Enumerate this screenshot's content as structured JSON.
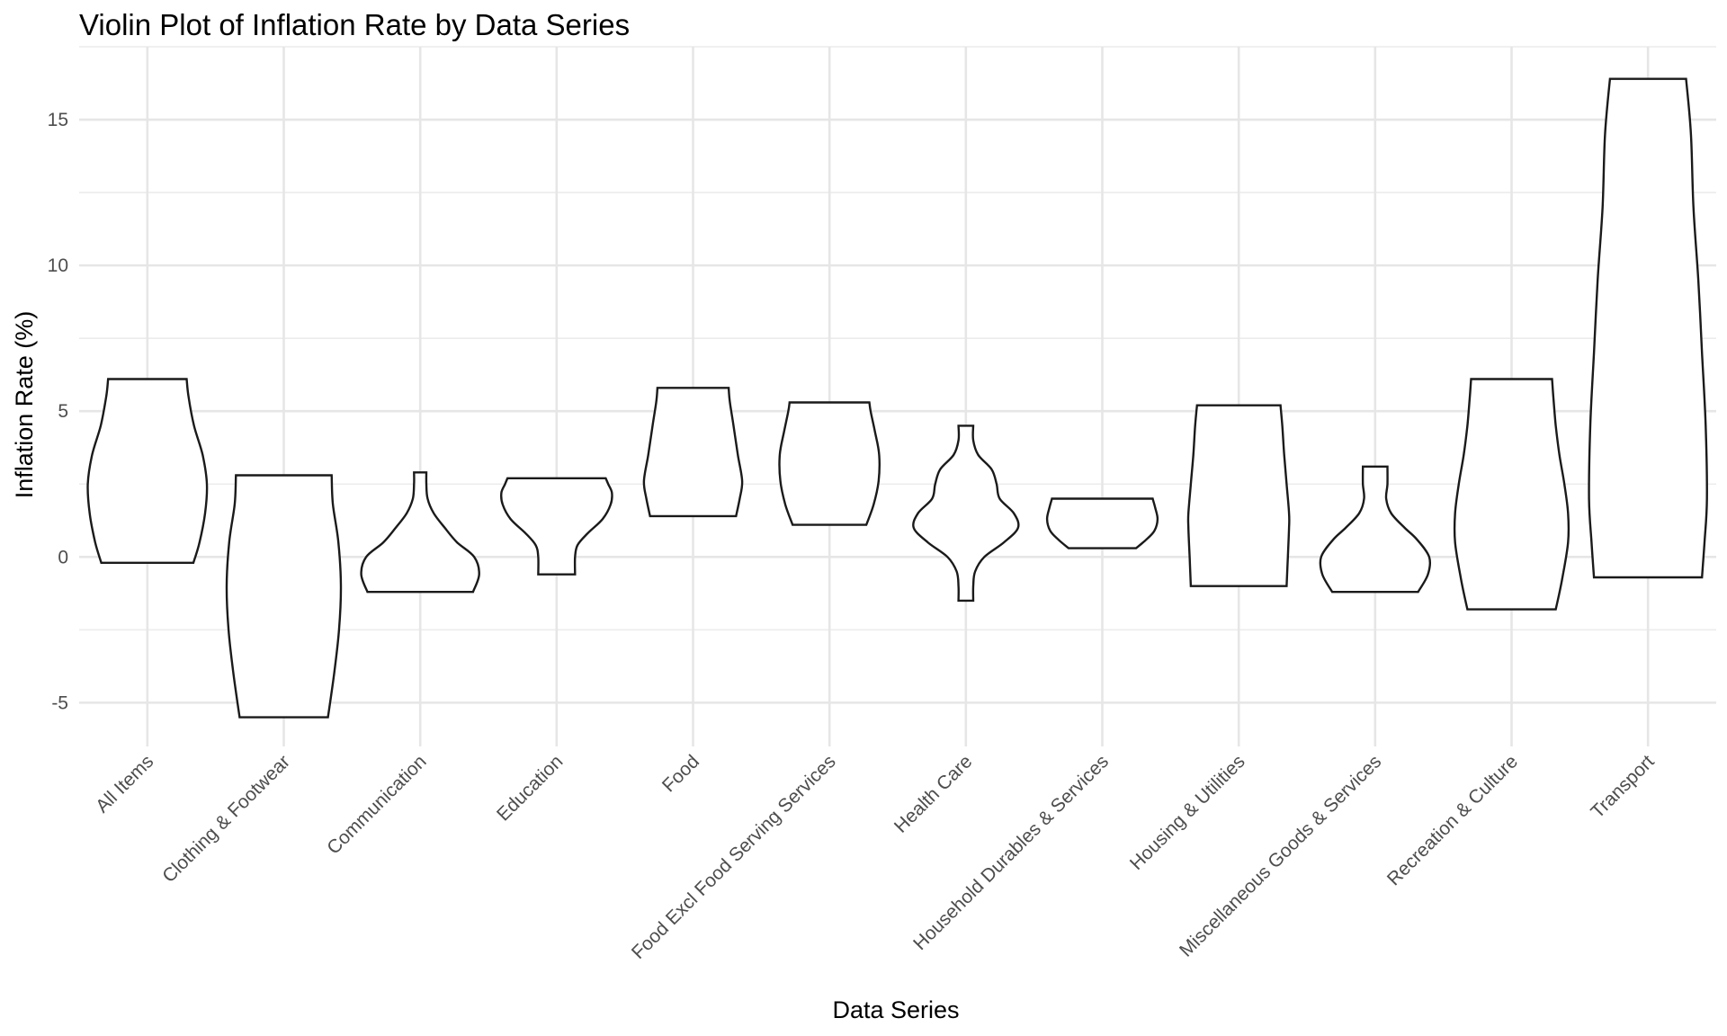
{
  "chart_data": {
    "type": "violin",
    "title": "Violin Plot of Inflation Rate by Data Series",
    "xlabel": "Data Series",
    "ylabel": "Inflation Rate (%)",
    "ylim": [
      -6.5,
      17.5
    ],
    "y_ticks": [
      -5,
      0,
      5,
      10,
      15
    ],
    "y_tick_labels": [
      "-5",
      "0",
      "5",
      "10",
      "15"
    ],
    "grid": true,
    "legend": "none",
    "categories": [
      "All Items",
      "Clothing & Footwear",
      "Communication",
      "Education",
      "Food",
      "Food Excl Food Serving Services",
      "Health Care",
      "Household Durables & Services",
      "Housing & Utilities",
      "Miscellaneous Goods & Services",
      "Recreation & Culture",
      "Transport"
    ],
    "series": [
      {
        "category": "All Items",
        "min": -0.2,
        "max": 6.1,
        "profile": [
          [
            -0.2,
            0.75
          ],
          [
            0.5,
            0.85
          ],
          [
            1.5,
            0.94
          ],
          [
            2.5,
            0.97
          ],
          [
            3.5,
            0.9
          ],
          [
            4.5,
            0.76
          ],
          [
            5.5,
            0.67
          ],
          [
            6.1,
            0.64
          ]
        ]
      },
      {
        "category": "Clothing & Footwear",
        "min": -5.5,
        "max": 2.8,
        "profile": [
          [
            -5.5,
            0.72
          ],
          [
            -4.0,
            0.82
          ],
          [
            -2.5,
            0.9
          ],
          [
            -1.0,
            0.93
          ],
          [
            0.5,
            0.89
          ],
          [
            1.8,
            0.8
          ],
          [
            2.8,
            0.78
          ]
        ]
      },
      {
        "category": "Communication",
        "min": -1.2,
        "max": 2.9,
        "profile": [
          [
            -1.2,
            0.86
          ],
          [
            -0.6,
            0.96
          ],
          [
            0.0,
            0.88
          ],
          [
            0.5,
            0.6
          ],
          [
            1.0,
            0.4
          ],
          [
            1.5,
            0.22
          ],
          [
            2.0,
            0.12
          ],
          [
            2.5,
            0.1
          ],
          [
            2.9,
            0.1
          ]
        ]
      },
      {
        "category": "Education",
        "min": -0.6,
        "max": 2.7,
        "profile": [
          [
            -0.6,
            0.3
          ],
          [
            0.0,
            0.3
          ],
          [
            0.4,
            0.34
          ],
          [
            0.8,
            0.5
          ],
          [
            1.3,
            0.75
          ],
          [
            1.8,
            0.88
          ],
          [
            2.2,
            0.9
          ],
          [
            2.5,
            0.84
          ],
          [
            2.7,
            0.8
          ]
        ]
      },
      {
        "category": "Food",
        "min": 1.4,
        "max": 5.8,
        "profile": [
          [
            1.4,
            0.7
          ],
          [
            2.0,
            0.76
          ],
          [
            2.6,
            0.8
          ],
          [
            3.5,
            0.73
          ],
          [
            4.5,
            0.66
          ],
          [
            5.3,
            0.6
          ],
          [
            5.8,
            0.58
          ]
        ]
      },
      {
        "category": "Food Excl Food Serving Services",
        "min": 1.1,
        "max": 5.3,
        "profile": [
          [
            1.1,
            0.6
          ],
          [
            1.8,
            0.72
          ],
          [
            2.6,
            0.8
          ],
          [
            3.5,
            0.81
          ],
          [
            4.3,
            0.74
          ],
          [
            5.0,
            0.67
          ],
          [
            5.3,
            0.65
          ]
        ]
      },
      {
        "category": "Health Care",
        "min": -1.5,
        "max": 4.5,
        "profile": [
          [
            -1.5,
            0.12
          ],
          [
            -1.0,
            0.12
          ],
          [
            -0.5,
            0.15
          ],
          [
            0.0,
            0.3
          ],
          [
            0.5,
            0.62
          ],
          [
            1.0,
            0.85
          ],
          [
            1.5,
            0.78
          ],
          [
            2.0,
            0.55
          ],
          [
            2.5,
            0.5
          ],
          [
            3.0,
            0.42
          ],
          [
            3.5,
            0.2
          ],
          [
            4.0,
            0.12
          ],
          [
            4.5,
            0.12
          ]
        ]
      },
      {
        "category": "Household Durables & Services",
        "min": 0.3,
        "max": 2.0,
        "profile": [
          [
            0.3,
            0.55
          ],
          [
            0.6,
            0.72
          ],
          [
            0.9,
            0.85
          ],
          [
            1.3,
            0.9
          ],
          [
            1.7,
            0.86
          ],
          [
            2.0,
            0.82
          ]
        ]
      },
      {
        "category": "Housing & Utilities",
        "min": -1.0,
        "max": 5.2,
        "profile": [
          [
            -1.0,
            0.78
          ],
          [
            0.0,
            0.8
          ],
          [
            1.0,
            0.82
          ],
          [
            1.5,
            0.82
          ],
          [
            2.5,
            0.78
          ],
          [
            3.5,
            0.74
          ],
          [
            4.5,
            0.71
          ],
          [
            5.2,
            0.68
          ]
        ]
      },
      {
        "category": "Miscellaneous Goods & Services",
        "min": -1.2,
        "max": 3.1,
        "profile": [
          [
            -1.2,
            0.7
          ],
          [
            -0.6,
            0.86
          ],
          [
            0.0,
            0.88
          ],
          [
            0.6,
            0.68
          ],
          [
            1.0,
            0.48
          ],
          [
            1.5,
            0.26
          ],
          [
            2.0,
            0.18
          ],
          [
            2.5,
            0.2
          ],
          [
            3.1,
            0.2
          ]
        ]
      },
      {
        "category": "Recreation & Culture",
        "min": -1.8,
        "max": 6.1,
        "profile": [
          [
            -1.8,
            0.72
          ],
          [
            -0.8,
            0.82
          ],
          [
            0.5,
            0.92
          ],
          [
            1.5,
            0.92
          ],
          [
            2.5,
            0.86
          ],
          [
            3.5,
            0.78
          ],
          [
            4.5,
            0.72
          ],
          [
            5.5,
            0.68
          ],
          [
            6.1,
            0.66
          ]
        ]
      },
      {
        "category": "Transport",
        "min": -0.7,
        "max": 16.4,
        "profile": [
          [
            -0.7,
            0.88
          ],
          [
            0.5,
            0.92
          ],
          [
            2.0,
            0.96
          ],
          [
            4.5,
            0.94
          ],
          [
            7.0,
            0.88
          ],
          [
            9.5,
            0.82
          ],
          [
            12.0,
            0.74
          ],
          [
            14.5,
            0.7
          ],
          [
            16.4,
            0.62
          ]
        ]
      }
    ]
  }
}
